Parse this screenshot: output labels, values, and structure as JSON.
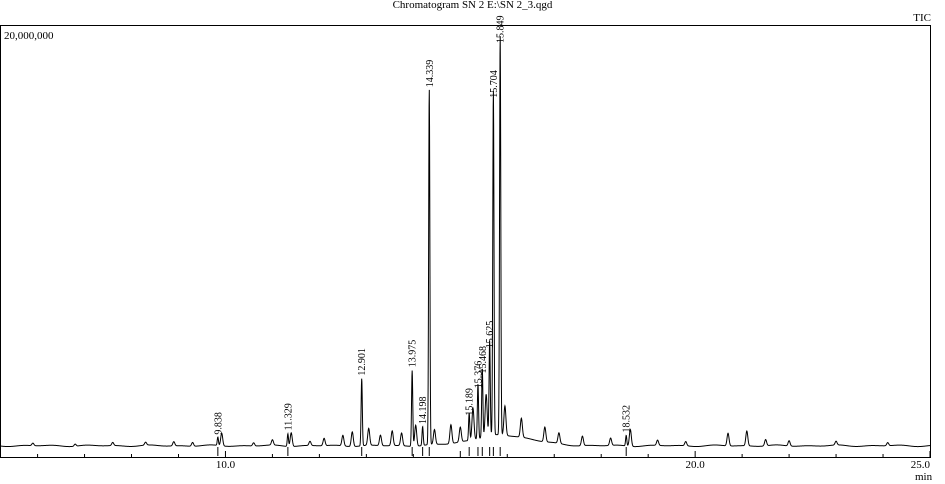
{
  "title": "Chromatogram SN 2 E:\\SN 2_3.qgd",
  "chart_data": {
    "type": "line",
    "signal": "TIC",
    "y_max_label": "20,000,000",
    "xlabel": "min",
    "xlim": [
      5.2,
      25.0
    ],
    "ylim": [
      0,
      20000000
    ],
    "x_ticks": [
      {
        "value": 10.0,
        "label": "10.0"
      },
      {
        "value": 20.0,
        "label": "20.0"
      },
      {
        "value": 25.0,
        "label": "25.0"
      }
    ],
    "peaks": [
      {
        "rt": 9.838,
        "label": "9.838",
        "intensity": 400000
      },
      {
        "rt": 11.329,
        "label": "11.329",
        "intensity": 600000
      },
      {
        "rt": 12.901,
        "label": "12.901",
        "intensity": 3200000
      },
      {
        "rt": 13.975,
        "label": "13.975",
        "intensity": 3600000
      },
      {
        "rt": 14.198,
        "label": "14.198",
        "intensity": 900000
      },
      {
        "rt": 14.339,
        "label": "14.339",
        "intensity": 16900000
      },
      {
        "rt": 15.189,
        "label": "15.189",
        "intensity": 1300000
      },
      {
        "rt": 15.376,
        "label": "15.376",
        "intensity": 2600000
      },
      {
        "rt": 15.468,
        "label": "15.468",
        "intensity": 3300000
      },
      {
        "rt": 15.625,
        "label": "15.625",
        "intensity": 4500000
      },
      {
        "rt": 15.704,
        "label": "15.704",
        "intensity": 16400000
      },
      {
        "rt": 15.849,
        "label": "15.849",
        "intensity": 19000000
      },
      {
        "rt": 18.532,
        "label": "18.532",
        "intensity": 500000
      }
    ],
    "minor_peaks": [
      {
        "rt": 5.9,
        "intensity": 120000
      },
      {
        "rt": 6.8,
        "intensity": 100000
      },
      {
        "rt": 7.6,
        "intensity": 150000
      },
      {
        "rt": 8.3,
        "intensity": 140000
      },
      {
        "rt": 8.9,
        "intensity": 200000
      },
      {
        "rt": 9.3,
        "intensity": 180000
      },
      {
        "rt": 9.92,
        "intensity": 600000
      },
      {
        "rt": 10.6,
        "intensity": 150000
      },
      {
        "rt": 11.0,
        "intensity": 250000
      },
      {
        "rt": 11.4,
        "intensity": 650000
      },
      {
        "rt": 11.8,
        "intensity": 200000
      },
      {
        "rt": 12.1,
        "intensity": 350000
      },
      {
        "rt": 12.5,
        "intensity": 500000
      },
      {
        "rt": 12.7,
        "intensity": 700000
      },
      {
        "rt": 13.05,
        "intensity": 800000
      },
      {
        "rt": 13.3,
        "intensity": 500000
      },
      {
        "rt": 13.55,
        "intensity": 700000
      },
      {
        "rt": 13.75,
        "intensity": 600000
      },
      {
        "rt": 14.05,
        "intensity": 1000000
      },
      {
        "rt": 14.45,
        "intensity": 700000
      },
      {
        "rt": 14.8,
        "intensity": 900000
      },
      {
        "rt": 15.0,
        "intensity": 700000
      },
      {
        "rt": 15.27,
        "intensity": 1500000
      },
      {
        "rt": 15.55,
        "intensity": 2000000
      },
      {
        "rt": 15.95,
        "intensity": 1400000
      },
      {
        "rt": 16.3,
        "intensity": 900000
      },
      {
        "rt": 16.8,
        "intensity": 700000
      },
      {
        "rt": 17.1,
        "intensity": 500000
      },
      {
        "rt": 17.6,
        "intensity": 450000
      },
      {
        "rt": 18.2,
        "intensity": 350000
      },
      {
        "rt": 18.62,
        "intensity": 800000
      },
      {
        "rt": 19.2,
        "intensity": 250000
      },
      {
        "rt": 19.8,
        "intensity": 200000
      },
      {
        "rt": 20.7,
        "intensity": 600000
      },
      {
        "rt": 21.1,
        "intensity": 700000
      },
      {
        "rt": 21.5,
        "intensity": 300000
      },
      {
        "rt": 22.0,
        "intensity": 250000
      },
      {
        "rt": 23.0,
        "intensity": 180000
      },
      {
        "rt": 24.1,
        "intensity": 150000
      }
    ],
    "grid": false
  }
}
